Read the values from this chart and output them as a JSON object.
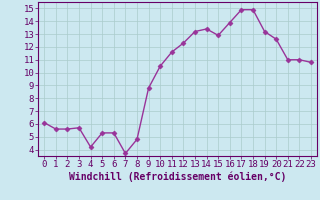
{
  "x": [
    0,
    1,
    2,
    3,
    4,
    5,
    6,
    7,
    8,
    9,
    10,
    11,
    12,
    13,
    14,
    15,
    16,
    17,
    18,
    19,
    20,
    21,
    22,
    23
  ],
  "y": [
    6.1,
    5.6,
    5.6,
    5.7,
    4.2,
    5.3,
    5.3,
    3.7,
    4.8,
    8.8,
    10.5,
    11.6,
    12.3,
    13.2,
    13.4,
    12.9,
    13.9,
    14.9,
    14.9,
    13.2,
    12.6,
    11.0,
    11.0,
    10.8
  ],
  "line_color": "#993399",
  "marker": "D",
  "marker_size": 2.5,
  "bg_color": "#cce8f0",
  "grid_color": "#aacccc",
  "xlabel": "Windchill (Refroidissement éolien,°C)",
  "xlim": [
    -0.5,
    23.5
  ],
  "ylim": [
    3.5,
    15.5
  ],
  "yticks": [
    4,
    5,
    6,
    7,
    8,
    9,
    10,
    11,
    12,
    13,
    14,
    15
  ],
  "xticks": [
    0,
    1,
    2,
    3,
    4,
    5,
    6,
    7,
    8,
    9,
    10,
    11,
    12,
    13,
    14,
    15,
    16,
    17,
    18,
    19,
    20,
    21,
    22,
    23
  ],
  "xlabel_fontsize": 7,
  "tick_fontsize": 6.5,
  "line_width": 1.0,
  "spine_color": "#660066",
  "text_color": "#660066"
}
